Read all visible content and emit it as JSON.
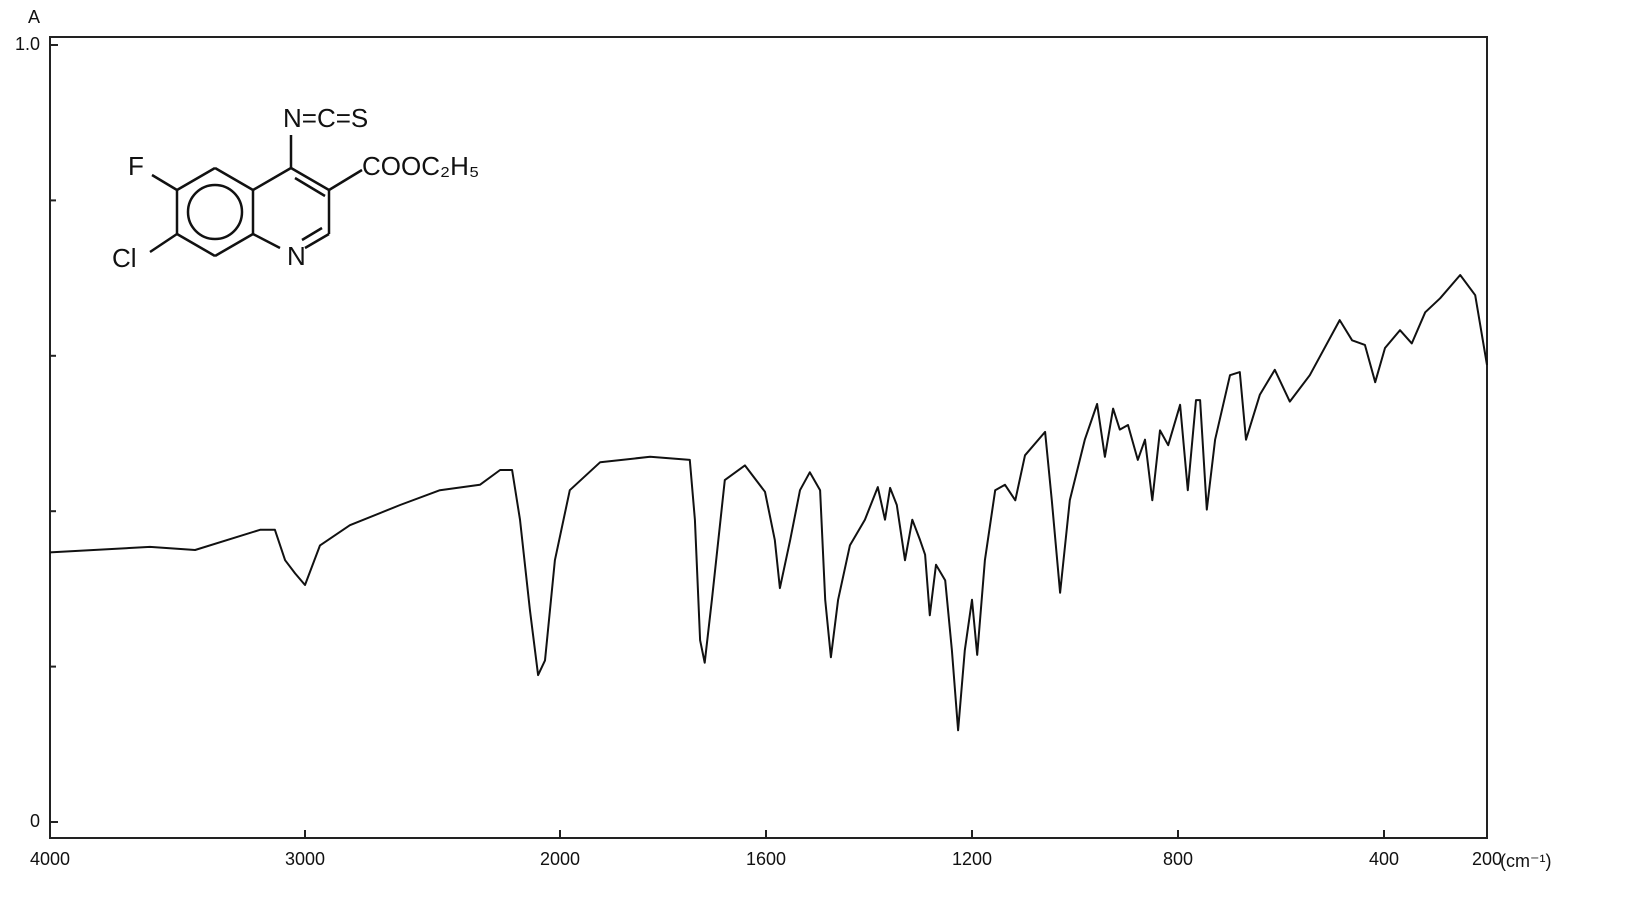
{
  "chart_data": {
    "type": "line",
    "y_label": "A",
    "x_label": "(cm⁻¹)",
    "annotations": [
      "N=C=S",
      "F",
      "COOC₂H₅",
      "Cl",
      "N"
    ],
    "xlim": [
      4000,
      200
    ],
    "ylim": [
      0,
      1
    ],
    "xticks": [
      4000,
      3000,
      2000,
      1600,
      1200,
      800,
      400,
      200
    ],
    "yticks": [
      0,
      {
        "value": 1,
        "label": "1.0"
      }
    ],
    "yticks_minor": [
      0.2,
      0.4,
      0.6,
      0.8
    ],
    "series": [
      {
        "color": "#111111",
        "x": [
          4000,
          3608,
          3431,
          3176,
          3118,
          3078,
          3039,
          3000,
          2941,
          2824,
          2627,
          2471,
          2314,
          2235,
          2188,
          2157,
          2118,
          2086,
          2059,
          2020,
          1981,
          1922,
          1825,
          1748,
          1738,
          1728,
          1719,
          1705,
          1680,
          1641,
          1602,
          1583,
          1573,
          1553,
          1534,
          1515,
          1495,
          1485,
          1474,
          1460,
          1437,
          1408,
          1383,
          1369,
          1359,
          1346,
          1330,
          1316,
          1301,
          1291,
          1282,
          1270,
          1252,
          1239,
          1227,
          1214,
          1200,
          1190,
          1175,
          1155,
          1136,
          1116,
          1097,
          1058,
          1045,
          1029,
          1010,
          981,
          957,
          942,
          926,
          913,
          897,
          878,
          864,
          850,
          835,
          819,
          796,
          781,
          765,
          757,
          744,
          728,
          699,
          680,
          668,
          641,
          612,
          583,
          544,
          486,
          462,
          437,
          417,
          398,
          369,
          346,
          320,
          291,
          252,
          223,
          200
        ],
        "values": [
          0.347,
          0.354,
          0.35,
          0.376,
          0.376,
          0.337,
          0.32,
          0.305,
          0.356,
          0.382,
          0.408,
          0.427,
          0.434,
          0.453,
          0.453,
          0.389,
          0.273,
          0.189,
          0.208,
          0.337,
          0.427,
          0.463,
          0.47,
          0.466,
          0.389,
          0.234,
          0.205,
          0.286,
          0.44,
          0.459,
          0.425,
          0.363,
          0.301,
          0.363,
          0.427,
          0.45,
          0.427,
          0.286,
          0.212,
          0.286,
          0.356,
          0.389,
          0.431,
          0.389,
          0.43,
          0.408,
          0.337,
          0.389,
          0.363,
          0.344,
          0.266,
          0.331,
          0.311,
          0.221,
          0.118,
          0.221,
          0.286,
          0.215,
          0.337,
          0.427,
          0.434,
          0.414,
          0.472,
          0.502,
          0.414,
          0.295,
          0.414,
          0.492,
          0.538,
          0.47,
          0.532,
          0.505,
          0.511,
          0.466,
          0.492,
          0.414,
          0.504,
          0.485,
          0.537,
          0.427,
          0.543,
          0.543,
          0.402,
          0.492,
          0.575,
          0.579,
          0.492,
          0.55,
          0.582,
          0.541,
          0.575,
          0.646,
          0.62,
          0.614,
          0.566,
          0.61,
          0.633,
          0.616,
          0.656,
          0.674,
          0.704,
          0.678,
          0.588
        ]
      }
    ]
  }
}
